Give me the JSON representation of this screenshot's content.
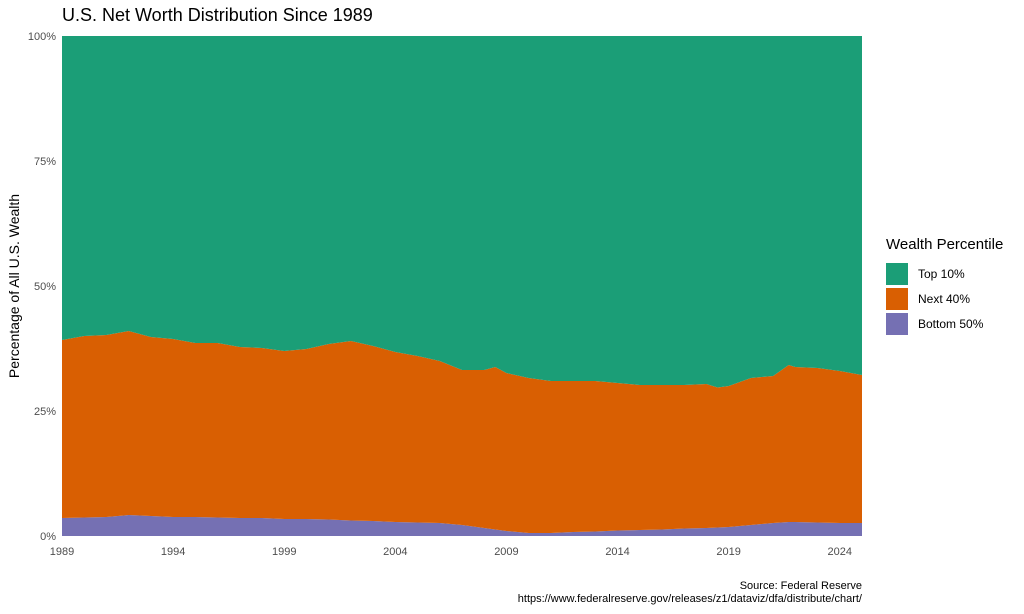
{
  "chart_data": {
    "type": "area",
    "stacked": true,
    "title": "U.S. Net Worth Distribution Since 1989",
    "xlabel": "",
    "ylabel": "Percentage of All U.S. Wealth",
    "xlim": [
      1989,
      2025
    ],
    "ylim": [
      0,
      100
    ],
    "x_ticks": [
      "1989",
      "1994",
      "1999",
      "2004",
      "2009",
      "2014",
      "2019",
      "2024"
    ],
    "y_ticks": [
      "0%",
      "25%",
      "50%",
      "75%",
      "100%"
    ],
    "legend_title": "Wealth Percentile",
    "legend_position": "right",
    "grid": false,
    "x": [
      1989,
      1990,
      1991,
      1992,
      1993,
      1994,
      1995,
      1996,
      1997,
      1998,
      1999,
      2000,
      2001,
      2002,
      2003,
      2004,
      2005,
      2006,
      2007,
      2008,
      2008.5,
      2009,
      2010,
      2011,
      2012,
      2013,
      2014,
      2015,
      2016,
      2017,
      2018,
      2018.5,
      2019,
      2020,
      2021,
      2021.7,
      2022,
      2023,
      2024,
      2025
    ],
    "series": [
      {
        "name": "Bottom 50%",
        "color": "#7570b3",
        "values": [
          3.6,
          3.7,
          3.8,
          4.2,
          4.0,
          3.8,
          3.8,
          3.7,
          3.6,
          3.6,
          3.4,
          3.4,
          3.3,
          3.1,
          3.0,
          2.8,
          2.7,
          2.6,
          2.2,
          1.6,
          1.3,
          1.0,
          0.6,
          0.6,
          0.8,
          0.9,
          1.1,
          1.2,
          1.3,
          1.5,
          1.6,
          1.7,
          1.8,
          2.2,
          2.6,
          2.8,
          2.8,
          2.7,
          2.6,
          2.6
        ]
      },
      {
        "name": "Next 40%",
        "color": "#d95f02",
        "values": [
          35.6,
          36.3,
          36.4,
          36.8,
          35.8,
          35.6,
          34.8,
          34.9,
          34.2,
          34.0,
          33.6,
          34.0,
          35.1,
          35.9,
          35.0,
          34.0,
          33.3,
          32.4,
          31.0,
          31.6,
          32.5,
          31.6,
          31.0,
          30.4,
          30.2,
          30.1,
          29.5,
          29.0,
          28.9,
          28.7,
          28.8,
          28.0,
          28.2,
          29.4,
          29.4,
          31.4,
          31.0,
          30.9,
          30.4,
          29.6
        ]
      },
      {
        "name": "Top 10%",
        "color": "#1b9e77",
        "values": [
          60.8,
          60.0,
          59.8,
          59.0,
          60.2,
          60.6,
          61.4,
          61.4,
          62.2,
          62.4,
          63.0,
          62.6,
          61.6,
          61.0,
          62.0,
          63.2,
          64.0,
          65.0,
          66.8,
          66.8,
          66.2,
          67.4,
          68.4,
          69.0,
          69.0,
          69.0,
          69.4,
          69.8,
          69.8,
          69.8,
          69.6,
          70.3,
          70.0,
          68.4,
          68.0,
          65.8,
          66.2,
          66.4,
          67.0,
          67.8
        ]
      }
    ],
    "legend_order": [
      "Top 10%",
      "Next 40%",
      "Bottom 50%"
    ],
    "caption": [
      "Source: Federal Reserve",
      "https://www.federalreserve.gov/releases/z1/dataviz/dfa/distribute/chart/"
    ]
  }
}
